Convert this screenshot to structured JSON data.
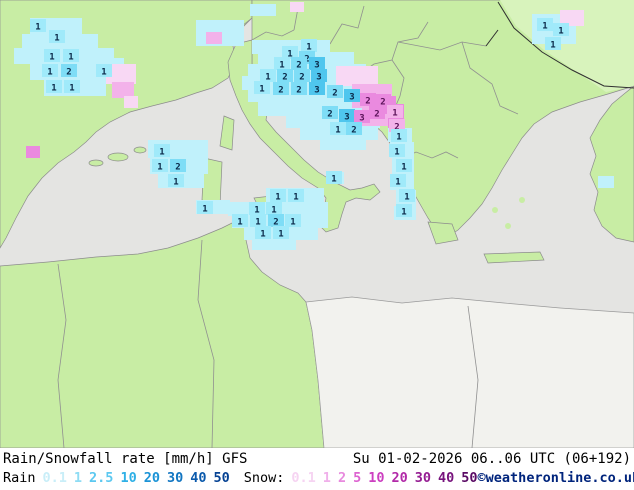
{
  "legend": {
    "title": "Rain/Snowfall rate [mm/h] GFS",
    "datetime": "Su 01-02-2026 06..06 UTC (06+192)",
    "rain_label": "Rain",
    "snow_label": "Snow:",
    "rain_scale": [
      {
        "v": "0.1",
        "color": "#c9eef8"
      },
      {
        "v": "1",
        "color": "#8edcf4"
      },
      {
        "v": "2.5",
        "color": "#5cc8f0"
      },
      {
        "v": "10",
        "color": "#2fb0e6"
      },
      {
        "v": "20",
        "color": "#1b93d6"
      },
      {
        "v": "30",
        "color": "#1276c2"
      },
      {
        "v": "40",
        "color": "#0b5aac"
      },
      {
        "v": "50",
        "color": "#064293"
      }
    ],
    "snow_scale": [
      {
        "v": "0.1",
        "color": "#f6d4f2"
      },
      {
        "v": "1",
        "color": "#f0b0ea"
      },
      {
        "v": "2",
        "color": "#e88ade"
      },
      {
        "v": "5",
        "color": "#dd62d0"
      },
      {
        "v": "10",
        "color": "#cc3fc0"
      },
      {
        "v": "20",
        "color": "#b22aa8"
      },
      {
        "v": "30",
        "color": "#951d92"
      },
      {
        "v": "40",
        "color": "#77127c"
      },
      {
        "v": "50",
        "color": "#5a0a64"
      }
    ],
    "copyright": "©weatheronline.co.uk",
    "copyright_color": "#00247c"
  },
  "map": {
    "model": "GFS",
    "colors": {
      "sea": "#e4e4e2",
      "land": "#c8eda4",
      "land_light": "#d8f3bc",
      "desert": "#f2f2ee",
      "coast": "#8c8c8c",
      "border": "#909090",
      "border_dark": "#303030",
      "rain_text": "#0a2848",
      "snow_text": "#5a1258",
      "r0": "#c0f1fb",
      "r1": "#a0eafa",
      "r2": "#7eddf6",
      "r3": "#4fc6ee",
      "s0": "#f8d8f4",
      "s1": "#f3b2ea",
      "s2": "#ea8adf"
    },
    "patches": [
      [
        30,
        18,
        52,
        16,
        "r0"
      ],
      [
        22,
        34,
        76,
        16,
        "r0"
      ],
      [
        14,
        48,
        100,
        16,
        "r0"
      ],
      [
        30,
        64,
        78,
        16,
        "r0"
      ],
      [
        44,
        80,
        62,
        16,
        "r0"
      ],
      [
        96,
        58,
        28,
        16,
        "r0"
      ],
      [
        106,
        64,
        30,
        20,
        "s0"
      ],
      [
        112,
        82,
        22,
        16,
        "s1"
      ],
      [
        124,
        96,
        14,
        12,
        "s0"
      ],
      [
        26,
        146,
        14,
        12,
        "s2"
      ],
      [
        196,
        20,
        48,
        26,
        "r0"
      ],
      [
        206,
        32,
        16,
        12,
        "s1"
      ],
      [
        250,
        4,
        26,
        12,
        "r0"
      ],
      [
        290,
        2,
        14,
        10,
        "s0"
      ],
      [
        252,
        40,
        78,
        14,
        "r0"
      ],
      [
        258,
        52,
        96,
        14,
        "r0"
      ],
      [
        248,
        64,
        118,
        14,
        "r0"
      ],
      [
        242,
        76,
        130,
        14,
        "r0"
      ],
      [
        248,
        88,
        126,
        14,
        "r0"
      ],
      [
        258,
        100,
        118,
        16,
        "r0"
      ],
      [
        286,
        114,
        94,
        14,
        "r0"
      ],
      [
        300,
        126,
        78,
        14,
        "r0"
      ],
      [
        320,
        138,
        46,
        12,
        "r0"
      ],
      [
        336,
        66,
        42,
        20,
        "s0"
      ],
      [
        352,
        84,
        40,
        24,
        "s1"
      ],
      [
        362,
        104,
        30,
        22,
        "s1"
      ],
      [
        374,
        96,
        22,
        18,
        "s2"
      ],
      [
        388,
        104,
        16,
        28,
        "s2"
      ],
      [
        390,
        128,
        14,
        16,
        "s1"
      ],
      [
        532,
        14,
        44,
        30,
        "r0"
      ],
      [
        560,
        10,
        24,
        16,
        "s0"
      ],
      [
        148,
        140,
        60,
        18,
        "r0"
      ],
      [
        150,
        156,
        58,
        18,
        "r0"
      ],
      [
        158,
        172,
        46,
        16,
        "r0"
      ],
      [
        266,
        188,
        58,
        16,
        "r0"
      ],
      [
        196,
        200,
        34,
        14,
        "r0"
      ],
      [
        228,
        202,
        100,
        14,
        "r0"
      ],
      [
        232,
        214,
        96,
        14,
        "r0"
      ],
      [
        244,
        226,
        74,
        14,
        "r0"
      ],
      [
        252,
        238,
        44,
        12,
        "r0"
      ],
      [
        388,
        128,
        24,
        14,
        "r0"
      ],
      [
        390,
        142,
        24,
        16,
        "r0"
      ],
      [
        392,
        158,
        22,
        16,
        "r0"
      ],
      [
        390,
        174,
        24,
        16,
        "r0"
      ],
      [
        396,
        190,
        20,
        16,
        "r0"
      ],
      [
        394,
        206,
        22,
        14,
        "r0"
      ],
      [
        598,
        176,
        16,
        12,
        "r0"
      ],
      [
        326,
        172,
        18,
        12,
        "r0"
      ]
    ],
    "cells": [
      [
        38,
        26,
        "1",
        "r1"
      ],
      [
        57,
        37,
        "1",
        "r1"
      ],
      [
        52,
        56,
        "1",
        "r1"
      ],
      [
        71,
        56,
        "1",
        "r1"
      ],
      [
        50,
        71,
        "1",
        "r1"
      ],
      [
        69,
        71,
        "2",
        "r2"
      ],
      [
        104,
        71,
        "1",
        "r1"
      ],
      [
        54,
        87,
        "1",
        "r1"
      ],
      [
        72,
        87,
        "1",
        "r1"
      ],
      [
        309,
        46,
        "1",
        "r1"
      ],
      [
        290,
        53,
        "1",
        "r1"
      ],
      [
        307,
        58,
        "2",
        "r2"
      ],
      [
        282,
        64,
        "1",
        "r1"
      ],
      [
        299,
        64,
        "2",
        "r2"
      ],
      [
        317,
        64,
        "3",
        "r3"
      ],
      [
        268,
        76,
        "1",
        "r1"
      ],
      [
        285,
        76,
        "2",
        "r2"
      ],
      [
        302,
        76,
        "2",
        "r2"
      ],
      [
        319,
        76,
        "3",
        "r3"
      ],
      [
        262,
        88,
        "1",
        "r1"
      ],
      [
        281,
        89,
        "2",
        "r2"
      ],
      [
        299,
        89,
        "2",
        "r2"
      ],
      [
        317,
        89,
        "3",
        "r3"
      ],
      [
        335,
        92,
        "2",
        "r2"
      ],
      [
        352,
        96,
        "3",
        "r3"
      ],
      [
        368,
        100,
        "2",
        "s2"
      ],
      [
        383,
        101,
        "2",
        "s2"
      ],
      [
        330,
        113,
        "2",
        "r2"
      ],
      [
        347,
        116,
        "3",
        "r3"
      ],
      [
        362,
        117,
        "3",
        "s2"
      ],
      [
        377,
        113,
        "2",
        "s2"
      ],
      [
        338,
        129,
        "1",
        "r1"
      ],
      [
        354,
        129,
        "2",
        "r2"
      ],
      [
        395,
        112,
        "1",
        "s1"
      ],
      [
        397,
        126,
        "2",
        "s1"
      ],
      [
        545,
        25,
        "1",
        "r1"
      ],
      [
        561,
        30,
        "1",
        "r1"
      ],
      [
        553,
        44,
        "1",
        "r1"
      ],
      [
        162,
        151,
        "1",
        "r1"
      ],
      [
        160,
        166,
        "1",
        "r1"
      ],
      [
        178,
        166,
        "2",
        "r2"
      ],
      [
        176,
        181,
        "1",
        "r1"
      ],
      [
        278,
        196,
        "1",
        "r1"
      ],
      [
        296,
        196,
        "1",
        "r1"
      ],
      [
        205,
        208,
        "1",
        "r1"
      ],
      [
        257,
        209,
        "1",
        "r1"
      ],
      [
        274,
        209,
        "1",
        "r1"
      ],
      [
        240,
        221,
        "1",
        "r1"
      ],
      [
        258,
        221,
        "1",
        "r1"
      ],
      [
        276,
        221,
        "2",
        "r2"
      ],
      [
        293,
        221,
        "1",
        "r1"
      ],
      [
        263,
        233,
        "1",
        "r1"
      ],
      [
        281,
        233,
        "1",
        "r1"
      ],
      [
        334,
        178,
        "1",
        "r1"
      ],
      [
        399,
        136,
        "1",
        "r1"
      ],
      [
        397,
        151,
        "1",
        "r1"
      ],
      [
        404,
        166,
        "1",
        "r1"
      ],
      [
        398,
        181,
        "1",
        "r1"
      ],
      [
        407,
        196,
        "1",
        "r1"
      ],
      [
        404,
        211,
        "1",
        "r1"
      ]
    ]
  }
}
